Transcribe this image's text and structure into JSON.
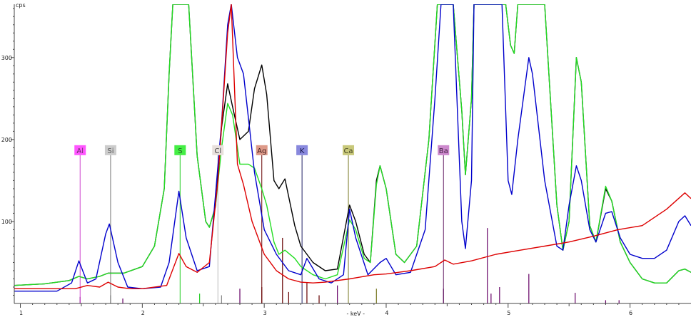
{
  "chart_data": {
    "type": "line",
    "ylabel": "cps",
    "xlabel": "- keV -",
    "xlim": [
      0.95,
      6.5
    ],
    "ylim": [
      0,
      365
    ],
    "x_ticks": [
      1,
      2,
      3,
      4,
      5,
      6
    ],
    "y_ticks": [
      100,
      200,
      300
    ],
    "grid": false,
    "colors": {
      "black": "#000000",
      "green": "#22dd22",
      "blue": "#0000cc",
      "red": "#dd0000",
      "axis": "#444444"
    },
    "series": [
      {
        "color": "black",
        "points": [
          [
            0.95,
            22
          ],
          [
            1.2,
            24
          ],
          [
            1.4,
            28
          ],
          [
            1.48,
            33
          ],
          [
            1.55,
            30
          ],
          [
            1.65,
            33
          ],
          [
            1.72,
            37
          ],
          [
            1.85,
            37
          ],
          [
            2.0,
            45
          ],
          [
            2.1,
            70
          ],
          [
            2.18,
            140
          ],
          [
            2.22,
            280
          ],
          [
            2.25,
            365
          ],
          [
            2.38,
            365
          ],
          [
            2.45,
            180
          ],
          [
            2.52,
            100
          ],
          [
            2.55,
            93
          ],
          [
            2.6,
            118
          ],
          [
            2.65,
            215
          ],
          [
            2.7,
            268
          ],
          [
            2.74,
            240
          ],
          [
            2.8,
            200
          ],
          [
            2.87,
            210
          ],
          [
            2.92,
            262
          ],
          [
            2.98,
            291
          ],
          [
            3.02,
            255
          ],
          [
            3.08,
            150
          ],
          [
            3.12,
            140
          ],
          [
            3.17,
            152
          ],
          [
            3.25,
            95
          ],
          [
            3.3,
            70
          ],
          [
            3.4,
            50
          ],
          [
            3.5,
            40
          ],
          [
            3.6,
            42
          ],
          [
            3.7,
            120
          ],
          [
            3.75,
            100
          ],
          [
            3.82,
            60
          ],
          [
            3.87,
            50
          ],
          [
            3.92,
            150
          ],
          [
            3.95,
            168
          ],
          [
            4.0,
            140
          ],
          [
            4.08,
            60
          ],
          [
            4.15,
            50
          ],
          [
            4.25,
            70
          ],
          [
            4.35,
            200
          ],
          [
            4.42,
            365
          ],
          [
            4.55,
            365
          ],
          [
            4.62,
            235
          ],
          [
            4.65,
            157
          ],
          [
            4.7,
            250
          ],
          [
            4.72,
            365
          ],
          [
            4.98,
            365
          ],
          [
            5.02,
            315
          ],
          [
            5.05,
            305
          ],
          [
            5.08,
            365
          ],
          [
            5.3,
            365
          ],
          [
            5.4,
            120
          ],
          [
            5.45,
            65
          ],
          [
            5.5,
            100
          ],
          [
            5.56,
            300
          ],
          [
            5.6,
            270
          ],
          [
            5.67,
            95
          ],
          [
            5.72,
            75
          ],
          [
            5.8,
            140
          ],
          [
            5.85,
            125
          ],
          [
            5.92,
            75
          ],
          [
            6.0,
            50
          ],
          [
            6.1,
            30
          ],
          [
            6.2,
            25
          ],
          [
            6.3,
            25
          ],
          [
            6.4,
            40
          ],
          [
            6.45,
            42
          ],
          [
            6.5,
            38
          ]
        ]
      },
      {
        "color": "green",
        "points": [
          [
            0.95,
            22
          ],
          [
            1.2,
            24
          ],
          [
            1.4,
            28
          ],
          [
            1.48,
            33
          ],
          [
            1.55,
            30
          ],
          [
            1.65,
            33
          ],
          [
            1.72,
            37
          ],
          [
            1.85,
            37
          ],
          [
            2.0,
            45
          ],
          [
            2.1,
            70
          ],
          [
            2.18,
            140
          ],
          [
            2.22,
            280
          ],
          [
            2.25,
            365
          ],
          [
            2.38,
            365
          ],
          [
            2.45,
            180
          ],
          [
            2.52,
            100
          ],
          [
            2.55,
            93
          ],
          [
            2.6,
            118
          ],
          [
            2.65,
            190
          ],
          [
            2.7,
            244
          ],
          [
            2.74,
            230
          ],
          [
            2.8,
            170
          ],
          [
            2.87,
            170
          ],
          [
            2.92,
            165
          ],
          [
            2.98,
            140
          ],
          [
            3.02,
            120
          ],
          [
            3.08,
            75
          ],
          [
            3.12,
            60
          ],
          [
            3.17,
            65
          ],
          [
            3.25,
            55
          ],
          [
            3.3,
            45
          ],
          [
            3.4,
            35
          ],
          [
            3.5,
            30
          ],
          [
            3.6,
            35
          ],
          [
            3.7,
            102
          ],
          [
            3.75,
            90
          ],
          [
            3.82,
            55
          ],
          [
            3.87,
            50
          ],
          [
            3.92,
            145
          ],
          [
            3.95,
            168
          ],
          [
            4.0,
            140
          ],
          [
            4.08,
            60
          ],
          [
            4.15,
            50
          ],
          [
            4.25,
            70
          ],
          [
            4.35,
            200
          ],
          [
            4.42,
            365
          ],
          [
            4.55,
            365
          ],
          [
            4.62,
            235
          ],
          [
            4.65,
            157
          ],
          [
            4.7,
            250
          ],
          [
            4.72,
            365
          ],
          [
            4.98,
            365
          ],
          [
            5.02,
            315
          ],
          [
            5.05,
            305
          ],
          [
            5.08,
            365
          ],
          [
            5.3,
            365
          ],
          [
            5.4,
            120
          ],
          [
            5.45,
            65
          ],
          [
            5.5,
            100
          ],
          [
            5.56,
            300
          ],
          [
            5.6,
            270
          ],
          [
            5.67,
            95
          ],
          [
            5.72,
            75
          ],
          [
            5.8,
            143
          ],
          [
            5.85,
            125
          ],
          [
            5.92,
            75
          ],
          [
            6.0,
            50
          ],
          [
            6.1,
            30
          ],
          [
            6.2,
            25
          ],
          [
            6.3,
            25
          ],
          [
            6.4,
            40
          ],
          [
            6.45,
            42
          ],
          [
            6.5,
            38
          ]
        ]
      },
      {
        "color": "blue",
        "points": [
          [
            0.95,
            15
          ],
          [
            1.3,
            15
          ],
          [
            1.42,
            25
          ],
          [
            1.48,
            52
          ],
          [
            1.55,
            25
          ],
          [
            1.62,
            30
          ],
          [
            1.7,
            85
          ],
          [
            1.73,
            97
          ],
          [
            1.8,
            50
          ],
          [
            1.88,
            20
          ],
          [
            2.0,
            18
          ],
          [
            2.15,
            20
          ],
          [
            2.22,
            50
          ],
          [
            2.3,
            137
          ],
          [
            2.36,
            80
          ],
          [
            2.45,
            40
          ],
          [
            2.55,
            45
          ],
          [
            2.65,
            220
          ],
          [
            2.7,
            340
          ],
          [
            2.73,
            365
          ],
          [
            2.78,
            300
          ],
          [
            2.83,
            280
          ],
          [
            2.92,
            160
          ],
          [
            3.0,
            90
          ],
          [
            3.1,
            60
          ],
          [
            3.2,
            40
          ],
          [
            3.3,
            35
          ],
          [
            3.35,
            55
          ],
          [
            3.45,
            30
          ],
          [
            3.55,
            25
          ],
          [
            3.65,
            35
          ],
          [
            3.7,
            115
          ],
          [
            3.75,
            80
          ],
          [
            3.85,
            35
          ],
          [
            3.95,
            50
          ],
          [
            4.0,
            55
          ],
          [
            4.08,
            35
          ],
          [
            4.2,
            38
          ],
          [
            4.32,
            90
          ],
          [
            4.4,
            250
          ],
          [
            4.45,
            365
          ],
          [
            4.55,
            365
          ],
          [
            4.62,
            100
          ],
          [
            4.65,
            67
          ],
          [
            4.7,
            150
          ],
          [
            4.72,
            365
          ],
          [
            4.95,
            365
          ],
          [
            5.0,
            150
          ],
          [
            5.03,
            133
          ],
          [
            5.08,
            200
          ],
          [
            5.17,
            300
          ],
          [
            5.2,
            280
          ],
          [
            5.3,
            150
          ],
          [
            5.4,
            70
          ],
          [
            5.45,
            65
          ],
          [
            5.5,
            120
          ],
          [
            5.56,
            168
          ],
          [
            5.6,
            150
          ],
          [
            5.67,
            90
          ],
          [
            5.72,
            75
          ],
          [
            5.8,
            110
          ],
          [
            5.85,
            112
          ],
          [
            5.92,
            80
          ],
          [
            6.0,
            60
          ],
          [
            6.1,
            55
          ],
          [
            6.2,
            55
          ],
          [
            6.3,
            65
          ],
          [
            6.4,
            100
          ],
          [
            6.45,
            107
          ],
          [
            6.5,
            95
          ]
        ]
      },
      {
        "color": "red",
        "points": [
          [
            0.95,
            18
          ],
          [
            1.2,
            18
          ],
          [
            1.45,
            18
          ],
          [
            1.55,
            22
          ],
          [
            1.65,
            20
          ],
          [
            1.72,
            26
          ],
          [
            1.8,
            20
          ],
          [
            1.9,
            18
          ],
          [
            2.0,
            18
          ],
          [
            2.2,
            22
          ],
          [
            2.3,
            61
          ],
          [
            2.36,
            45
          ],
          [
            2.45,
            38
          ],
          [
            2.55,
            50
          ],
          [
            2.62,
            150
          ],
          [
            2.7,
            330
          ],
          [
            2.73,
            365
          ],
          [
            2.78,
            170
          ],
          [
            2.83,
            145
          ],
          [
            2.9,
            100
          ],
          [
            3.0,
            60
          ],
          [
            3.1,
            40
          ],
          [
            3.2,
            30
          ],
          [
            3.3,
            26
          ],
          [
            3.4,
            25
          ],
          [
            3.5,
            26
          ],
          [
            3.7,
            30
          ],
          [
            3.9,
            35
          ],
          [
            4.0,
            36
          ],
          [
            4.2,
            40
          ],
          [
            4.4,
            45
          ],
          [
            4.48,
            53
          ],
          [
            4.55,
            48
          ],
          [
            4.7,
            52
          ],
          [
            4.9,
            60
          ],
          [
            5.1,
            65
          ],
          [
            5.3,
            70
          ],
          [
            5.5,
            75
          ],
          [
            5.7,
            82
          ],
          [
            5.9,
            90
          ],
          [
            6.1,
            95
          ],
          [
            6.3,
            115
          ],
          [
            6.45,
            135
          ],
          [
            6.5,
            128
          ]
        ]
      }
    ],
    "element_markers": [
      {
        "label": "Al",
        "x": 1.49,
        "color": "#ff55ff",
        "line": "#cc44cc",
        "text_color": "#663366"
      },
      {
        "label": "Si",
        "x": 1.74,
        "color": "#cccccc",
        "line": "#777777",
        "text_color": "#555555"
      },
      {
        "label": "S",
        "x": 2.31,
        "color": "#44ee44",
        "line": "#22cc22",
        "text_color": "#225522"
      },
      {
        "label": "Cl",
        "x": 2.62,
        "color": "#e8e0dc",
        "line": "#bbbbbb",
        "text_color": "#444444"
      },
      {
        "label": "Ag",
        "x": 2.98,
        "color": "#dd9988",
        "line": "#660000",
        "text_color": "#442222"
      },
      {
        "label": "K",
        "x": 3.31,
        "color": "#8888dd",
        "line": "#222266",
        "text_color": "#111144"
      },
      {
        "label": "Ca",
        "x": 3.69,
        "color": "#c8c87a",
        "line": "#777722",
        "text_color": "#444422"
      },
      {
        "label": "Ba",
        "x": 4.47,
        "color": "#cc88cc",
        "line": "#662266",
        "text_color": "#442244"
      }
    ],
    "marker_label_y": 187,
    "reference_lines": [
      {
        "x": 1.49,
        "h": 8,
        "color": "#660066"
      },
      {
        "x": 1.74,
        "h": 10,
        "color": "#666666"
      },
      {
        "x": 1.84,
        "h": 6,
        "color": "#660066"
      },
      {
        "x": 2.47,
        "h": 12,
        "color": "#22cc22"
      },
      {
        "x": 2.65,
        "h": 10,
        "color": "#888888"
      },
      {
        "x": 2.8,
        "h": 18,
        "color": "#660066"
      },
      {
        "x": 2.98,
        "h": 20,
        "color": "#660000"
      },
      {
        "x": 3.15,
        "h": 80,
        "color": "#660000"
      },
      {
        "x": 3.2,
        "h": 14,
        "color": "#660000"
      },
      {
        "x": 3.35,
        "h": 25,
        "color": "#660000"
      },
      {
        "x": 3.45,
        "h": 10,
        "color": "#660000"
      },
      {
        "x": 3.6,
        "h": 22,
        "color": "#660066"
      },
      {
        "x": 3.92,
        "h": 18,
        "color": "#777722"
      },
      {
        "x": 4.47,
        "h": 18,
        "color": "#660066"
      },
      {
        "x": 4.83,
        "h": 92,
        "color": "#660066"
      },
      {
        "x": 4.86,
        "h": 12,
        "color": "#660066"
      },
      {
        "x": 4.93,
        "h": 20,
        "color": "#660066"
      },
      {
        "x": 5.17,
        "h": 36,
        "color": "#660066"
      },
      {
        "x": 5.55,
        "h": 13,
        "color": "#660066"
      },
      {
        "x": 5.8,
        "h": 4,
        "color": "#660066"
      },
      {
        "x": 5.91,
        "h": 4,
        "color": "#660066"
      }
    ]
  }
}
